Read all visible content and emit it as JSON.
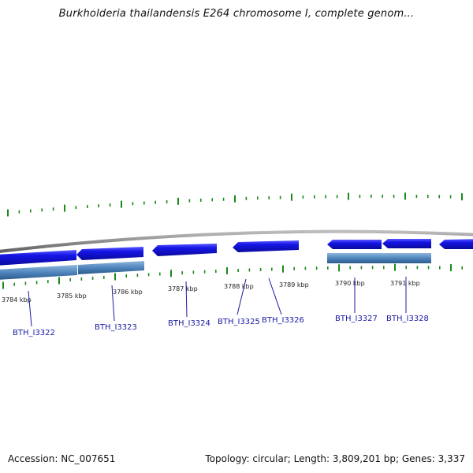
{
  "title": "Burkholderia thailandensis E264 chromosome I, complete genom...",
  "accession": "Accession: NC_007651",
  "summary": "Topology: circular; Length: 3,809,201 bp; Genes: 3,337",
  "colors": {
    "forward_gene": "#1515e6",
    "reverse_gene": "#4f86bd",
    "backbone": "#8c8c8c",
    "ticks": "#1a8a1a",
    "label_line": "#1a1aa6"
  },
  "position_labels": [
    "3784 kbp",
    "3785 kbp",
    "3786 kbp",
    "3787 kbp",
    "3788 kbp",
    "3789 kbp",
    "3790 kbp",
    "3791 kbp"
  ],
  "genes": [
    "BTH_I3322",
    "BTH_I3323",
    "BTH_I3324",
    "BTH_I3325",
    "BTH_I3326",
    "BTH_I3327",
    "BTH_I3328"
  ]
}
